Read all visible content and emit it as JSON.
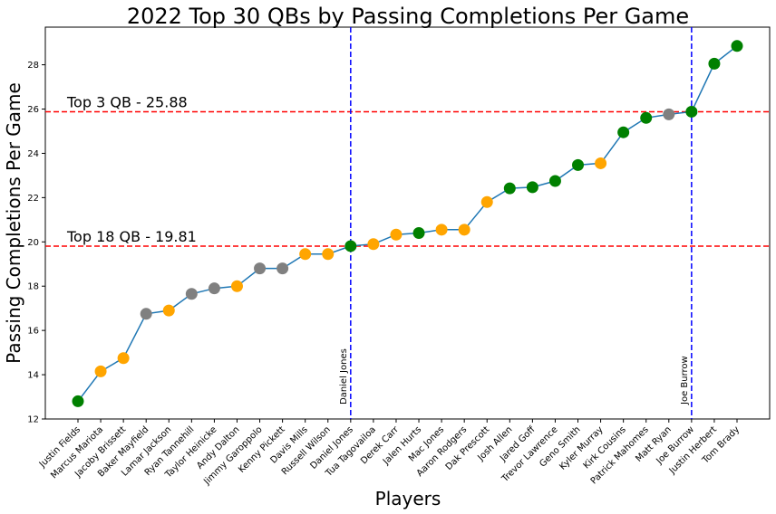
{
  "chart_data": {
    "type": "line",
    "title": "2022 Top 30 QBs by Passing Completions Per Game",
    "xlabel": "Players",
    "ylabel": "Passing Completions Per Game",
    "ylim": [
      12,
      29.7
    ],
    "yticks": [
      12,
      14,
      16,
      18,
      20,
      22,
      24,
      26,
      28
    ],
    "grid": false,
    "line_color": "#1f77b4",
    "categories": [
      "Justin Fields",
      "Marcus Mariota",
      "Jacoby Brissett",
      "Baker Mayfield",
      "Lamar Jackson",
      "Ryan Tannehill",
      "Taylor Heinicke",
      "Andy Dalton",
      "Jimmy Garoppolo",
      "Kenny Pickett",
      "Davis Mills",
      "Russell Wilson",
      "Daniel Jones",
      "Tua Tagovailoa",
      "Derek Carr",
      "Jalen Hurts",
      "Mac Jones",
      "Aaron Rodgers",
      "Dak Prescott",
      "Josh Allen",
      "Jared Goff",
      "Trevor Lawrence",
      "Geno Smith",
      "Kyler Murray",
      "Kirk Cousins",
      "Patrick Mahomes",
      "Matt Ryan",
      "Joe Burrow",
      "Justin Herbert",
      "Tom Brady"
    ],
    "values": [
      12.8,
      14.15,
      14.75,
      16.75,
      16.9,
      17.65,
      17.9,
      18.0,
      18.8,
      18.8,
      19.45,
      19.45,
      19.81,
      19.9,
      20.33,
      20.4,
      20.55,
      20.55,
      21.8,
      22.42,
      22.47,
      22.75,
      23.47,
      23.55,
      24.95,
      25.6,
      25.76,
      25.88,
      28.05,
      28.85
    ],
    "point_colors": [
      "#008000",
      "#ffa500",
      "#ffa500",
      "#808080",
      "#ffa500",
      "#808080",
      "#808080",
      "#ffa500",
      "#808080",
      "#808080",
      "#ffa500",
      "#ffa500",
      "#008000",
      "#ffa500",
      "#ffa500",
      "#008000",
      "#ffa500",
      "#ffa500",
      "#ffa500",
      "#008000",
      "#008000",
      "#008000",
      "#008000",
      "#ffa500",
      "#008000",
      "#008000",
      "#808080",
      "#008000",
      "#008000",
      "#008000"
    ],
    "hlines": [
      {
        "value": 25.88,
        "label": "Top 3 QB - 25.88",
        "color": "#ff0000"
      },
      {
        "value": 19.81,
        "label": "Top 18 QB - 19.81",
        "color": "#ff0000"
      }
    ],
    "vlines": [
      {
        "category": "Daniel Jones",
        "label": "Daniel Jones",
        "color": "#0000ff"
      },
      {
        "category": "Joe Burrow",
        "label": "Joe Burrow",
        "color": "#0000ff"
      }
    ]
  }
}
